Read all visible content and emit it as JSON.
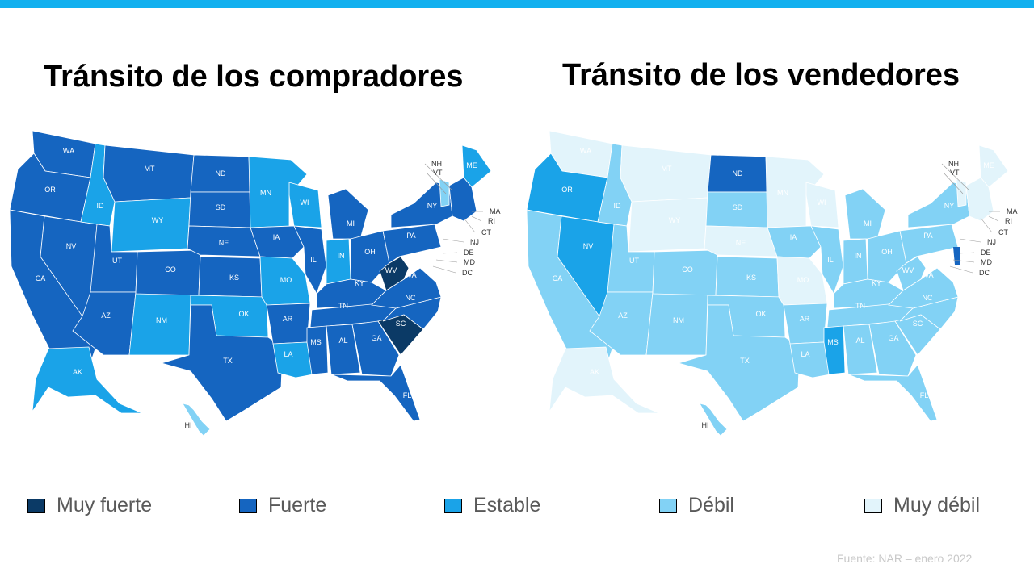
{
  "colors": {
    "accent": "#12b0ef",
    "muy_fuerte": "#0b3a66",
    "fuerte": "#1565c0",
    "estable": "#1aa3e8",
    "debil": "#82d2f5",
    "muy_debil": "#e2f4fb"
  },
  "titles": {
    "buyers": "Tránsito de los compradores",
    "sellers": "Tránsito de los vendedores"
  },
  "legend": [
    {
      "label": "Muy fuerte",
      "color": "#0b3a66"
    },
    {
      "label": "Fuerte",
      "color": "#1565c0"
    },
    {
      "label": "Estable",
      "color": "#1aa3e8"
    },
    {
      "label": "Débil",
      "color": "#82d2f5"
    },
    {
      "label": "Muy débil",
      "color": "#e2f4fb"
    }
  ],
  "source": "Fuente:  NAR – enero 2022",
  "state_codes": [
    "WA",
    "OR",
    "CA",
    "NV",
    "ID",
    "MT",
    "WY",
    "UT",
    "AZ",
    "NM",
    "CO",
    "ND",
    "SD",
    "NE",
    "KS",
    "OK",
    "TX",
    "MN",
    "IA",
    "MO",
    "AR",
    "LA",
    "WI",
    "IL",
    "MI",
    "IN",
    "OH",
    "KY",
    "TN",
    "MS",
    "AL",
    "GA",
    "FL",
    "SC",
    "NC",
    "VA",
    "WV",
    "PA",
    "NY",
    "ME",
    "AK",
    "HI"
  ],
  "ne_callouts": [
    "NH",
    "VT",
    "MA",
    "RI",
    "CT",
    "NJ",
    "DE",
    "MD",
    "DC"
  ],
  "buyers_map": {
    "WA": "fuerte",
    "OR": "fuerte",
    "CA": "fuerte",
    "NV": "fuerte",
    "ID": "estable",
    "MT": "fuerte",
    "WY": "estable",
    "UT": "fuerte",
    "AZ": "fuerte",
    "NM": "estable",
    "CO": "fuerte",
    "ND": "fuerte",
    "SD": "fuerte",
    "NE": "fuerte",
    "KS": "fuerte",
    "OK": "estable",
    "TX": "fuerte",
    "MN": "estable",
    "IA": "fuerte",
    "MO": "estable",
    "AR": "fuerte",
    "LA": "estable",
    "WI": "estable",
    "IL": "fuerte",
    "MI": "fuerte",
    "IN": "estable",
    "OH": "fuerte",
    "KY": "fuerte",
    "TN": "fuerte",
    "MS": "fuerte",
    "AL": "fuerte",
    "GA": "fuerte",
    "FL": "fuerte",
    "SC": "muy_fuerte",
    "NC": "fuerte",
    "VA": "fuerte",
    "WV": "muy_fuerte",
    "PA": "fuerte",
    "NY": "fuerte",
    "ME": "estable",
    "AK": "estable",
    "HI": "debil",
    "NE_REGION": "fuerte",
    "VT": "debil"
  },
  "sellers_map": {
    "WA": "muy_debil",
    "OR": "estable",
    "CA": "debil",
    "NV": "estable",
    "ID": "debil",
    "MT": "muy_debil",
    "WY": "muy_debil",
    "UT": "debil",
    "AZ": "debil",
    "NM": "debil",
    "CO": "debil",
    "ND": "fuerte",
    "SD": "debil",
    "NE": "muy_debil",
    "KS": "debil",
    "OK": "debil",
    "TX": "debil",
    "MN": "muy_debil",
    "IA": "debil",
    "MO": "muy_debil",
    "AR": "debil",
    "LA": "debil",
    "WI": "muy_debil",
    "IL": "debil",
    "MI": "debil",
    "IN": "debil",
    "OH": "debil",
    "KY": "debil",
    "TN": "debil",
    "MS": "estable",
    "AL": "debil",
    "GA": "debil",
    "FL": "debil",
    "SC": "debil",
    "NC": "debil",
    "VA": "debil",
    "WV": "debil",
    "PA": "debil",
    "NY": "debil",
    "ME": "muy_debil",
    "AK": "muy_debil",
    "HI": "debil",
    "NE_REGION": "muy_debil",
    "VT": "muy_debil",
    "DE": "fuerte"
  }
}
